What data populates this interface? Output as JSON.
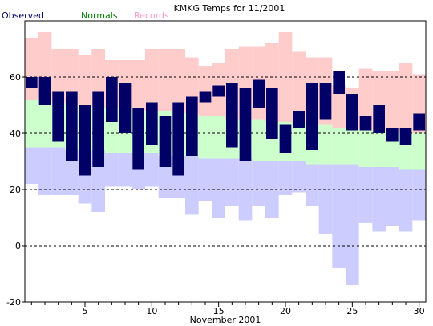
{
  "chart_data": {
    "type": "bar",
    "title": "KMKG Temps for 11/2001",
    "xlabel": "November 2001",
    "ylabel": "",
    "ylim": [
      -20,
      80
    ],
    "xlim": [
      0.5,
      30.5
    ],
    "grid": "dashed lines at 60, 40, 20, 0",
    "legend": [
      "Observed",
      "Normals",
      "Records"
    ],
    "colors": {
      "Observed": "#000066",
      "Normals": "#ccffcc",
      "Records": "#ffcccc",
      "RecordLows": "#ccccff"
    },
    "y_ticks": [
      -20,
      0,
      20,
      40,
      60
    ],
    "x_ticks": [
      5,
      10,
      15,
      20,
      25,
      30
    ],
    "days": [
      1,
      2,
      3,
      4,
      5,
      6,
      7,
      8,
      9,
      10,
      11,
      12,
      13,
      14,
      15,
      16,
      17,
      18,
      19,
      20,
      21,
      22,
      23,
      24,
      25,
      26,
      27,
      28,
      29,
      30
    ],
    "series": [
      {
        "name": "Records",
        "record_high": [
          74,
          76,
          70,
          70,
          68,
          70,
          66,
          66,
          66,
          70,
          70,
          70,
          67,
          64,
          65,
          70,
          71,
          71,
          72,
          76,
          69,
          67,
          67,
          57,
          56,
          63,
          62,
          62,
          65,
          61
        ],
        "record_low": [
          22,
          18,
          18,
          18,
          15,
          12,
          21,
          21,
          20,
          21,
          17,
          17,
          11,
          16,
          10,
          14,
          9,
          14,
          10,
          18,
          19,
          14,
          4,
          -8,
          -14,
          8,
          5,
          7,
          5,
          9
        ]
      },
      {
        "name": "Normals",
        "normal_high": [
          52,
          52,
          51,
          50,
          50,
          49,
          49,
          49,
          48,
          48,
          48,
          47,
          47,
          46,
          46,
          45,
          45,
          45,
          44,
          44,
          43,
          43,
          43,
          42,
          42,
          41,
          41,
          41,
          40,
          40
        ],
        "normal_low": [
          35,
          35,
          35,
          34,
          34,
          34,
          33,
          33,
          33,
          33,
          32,
          32,
          32,
          31,
          31,
          31,
          31,
          30,
          30,
          30,
          30,
          29,
          29,
          29,
          29,
          28,
          28,
          28,
          27,
          27
        ]
      },
      {
        "name": "Observed",
        "high": [
          60,
          60,
          55,
          55,
          50,
          55,
          60,
          58,
          49,
          51,
          46,
          51,
          53,
          55,
          57,
          58,
          56,
          59,
          56,
          43,
          48,
          58,
          58,
          62,
          54,
          46,
          50,
          42,
          42,
          47
        ],
        "low": [
          56,
          50,
          37,
          30,
          25,
          28,
          44,
          40,
          27,
          36,
          28,
          25,
          32,
          51,
          53,
          35,
          30,
          49,
          38,
          33,
          42,
          34,
          45,
          54,
          41,
          41,
          40,
          37,
          36,
          41
        ]
      }
    ]
  }
}
